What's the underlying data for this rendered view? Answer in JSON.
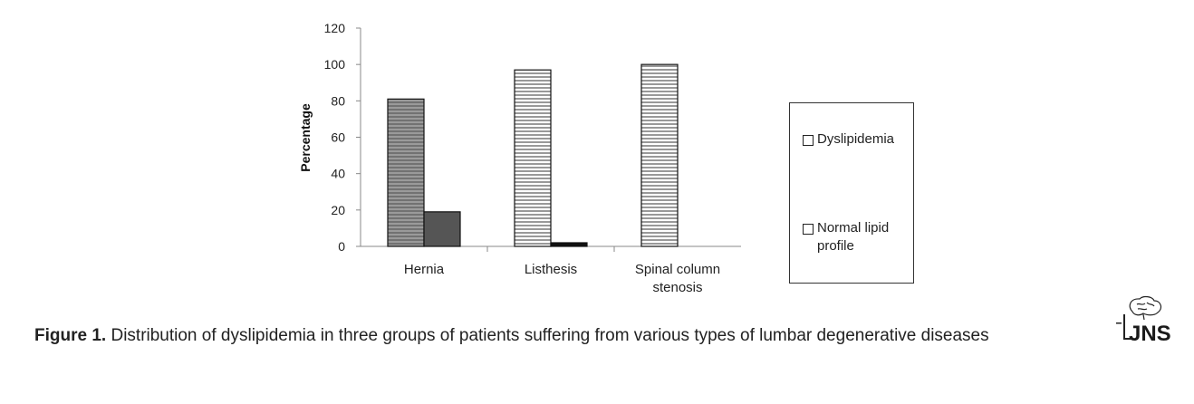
{
  "chart_data": {
    "type": "bar",
    "categories": [
      "Hernia",
      "Listhesis",
      "Spinal column stenosis"
    ],
    "category_lines": [
      [
        "Hernia"
      ],
      [
        "Listhesis"
      ],
      [
        "Spinal column",
        "stenosis"
      ]
    ],
    "series": [
      {
        "name": "Dyslipidemia",
        "values": [
          81,
          97,
          100
        ]
      },
      {
        "name": "Normal lipid profile",
        "values": [
          19,
          2,
          0
        ]
      }
    ],
    "ylabel": "Percentage",
    "xlabel": "",
    "ylim": [
      0,
      120
    ],
    "yticks": [
      0,
      20,
      40,
      60,
      80,
      100,
      120
    ],
    "grid": false,
    "legend_position": "right"
  },
  "legend": {
    "items": [
      "Dyslipidemia",
      "Normal lipid profile"
    ]
  },
  "caption": {
    "label": "Figure 1.",
    "text": " Distribution of dyslipidemia in three groups of patients suffering from various types of lumbar degenerative diseases"
  },
  "logo": {
    "name": "JNS-logo",
    "text": "JNS"
  }
}
